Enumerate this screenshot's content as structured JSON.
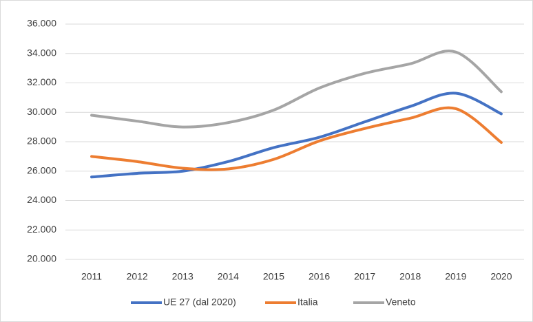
{
  "chart_data": {
    "type": "line",
    "categories": [
      "2011",
      "2012",
      "2013",
      "2014",
      "2015",
      "2016",
      "2017",
      "2018",
      "2019",
      "2020"
    ],
    "series": [
      {
        "name": "UE 27 (dal 2020)",
        "color": "#4472c4",
        "values": [
          25600,
          25850,
          26000,
          26650,
          27600,
          28300,
          29350,
          30400,
          31300,
          29900
        ]
      },
      {
        "name": "Italia",
        "color": "#ed7d31",
        "values": [
          27000,
          26650,
          26200,
          26150,
          26800,
          28050,
          28900,
          29600,
          30250,
          27950
        ]
      },
      {
        "name": "Veneto",
        "color": "#a5a5a5",
        "values": [
          29800,
          29400,
          29000,
          29300,
          30150,
          31650,
          32650,
          33300,
          34100,
          31400
        ]
      }
    ],
    "ylim": [
      20000,
      36000
    ],
    "yticks": [
      {
        "value": 20000,
        "label": "20.000"
      },
      {
        "value": 22000,
        "label": "22.000"
      },
      {
        "value": 24000,
        "label": "24.000"
      },
      {
        "value": 26000,
        "label": "26.000"
      },
      {
        "value": 28000,
        "label": "28.000"
      },
      {
        "value": 30000,
        "label": "30.000"
      },
      {
        "value": 32000,
        "label": "32.000"
      },
      {
        "value": 34000,
        "label": "34.000"
      },
      {
        "value": 36000,
        "label": "36.000"
      }
    ],
    "grid": true,
    "legend": "bottom"
  }
}
